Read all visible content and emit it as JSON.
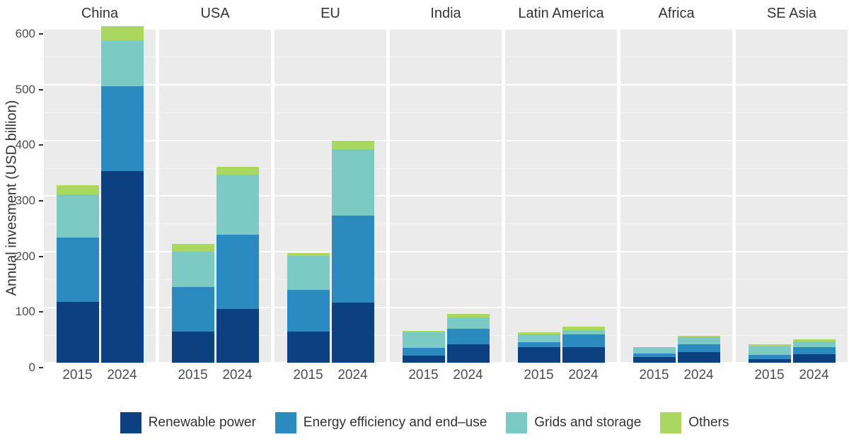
{
  "figure": {
    "background": "#ffffff",
    "panel_background": "#ebebeb",
    "gridline_major_color": "#ffffff",
    "gridline_minor_color": "#f5f5f5",
    "axis_text_color": "#4d4d4d",
    "title_text_color": "#333333"
  },
  "chart_data": {
    "type": "bar",
    "stacked": true,
    "title": "",
    "ylabel": "Annual invesment (USD billion)",
    "xlabel": "",
    "ylim": [
      0,
      610
    ],
    "yticks": [
      0,
      100,
      200,
      300,
      400,
      500,
      600
    ],
    "minor_gridlines": [
      50,
      150,
      250,
      350,
      450,
      550
    ],
    "grid": true,
    "legend_position": "bottom",
    "facets": [
      "China",
      "USA",
      "EU",
      "India",
      "Latin America",
      "Africa",
      "SE Asia"
    ],
    "x": [
      "2015",
      "2024"
    ],
    "series": [
      {
        "name": "Renewable power",
        "color": "#0b4181",
        "values": [
          [
            110,
            345
          ],
          [
            56,
            97
          ],
          [
            56,
            108
          ],
          [
            13,
            33
          ],
          [
            29,
            28
          ],
          [
            11,
            20
          ],
          [
            7,
            16
          ]
        ]
      },
      {
        "name": "Energy efficiency and end–use",
        "color": "#2b8abf",
        "values": [
          [
            115,
            152
          ],
          [
            81,
            133
          ],
          [
            76,
            157
          ],
          [
            14,
            29
          ],
          [
            9,
            23
          ],
          [
            6,
            14
          ],
          [
            7,
            13
          ]
        ]
      },
      {
        "name": "Grids and storage",
        "color": "#7bcbc4",
        "values": [
          [
            78,
            83
          ],
          [
            63,
            108
          ],
          [
            60,
            120
          ],
          [
            28,
            20
          ],
          [
            14,
            8
          ],
          [
            11,
            13
          ],
          [
            16,
            10
          ]
        ]
      },
      {
        "name": "Others",
        "color": "#a9d75f",
        "values": [
          [
            16,
            25
          ],
          [
            14,
            14
          ],
          [
            5,
            15
          ],
          [
            3,
            6
          ],
          [
            3,
            6
          ],
          [
            1,
            2
          ],
          [
            3,
            3
          ]
        ]
      }
    ],
    "totals": [
      [
        319,
        605
      ],
      [
        214,
        352
      ],
      [
        197,
        400
      ],
      [
        58,
        88
      ],
      [
        55,
        65
      ],
      [
        29,
        49
      ],
      [
        33,
        42
      ]
    ]
  }
}
